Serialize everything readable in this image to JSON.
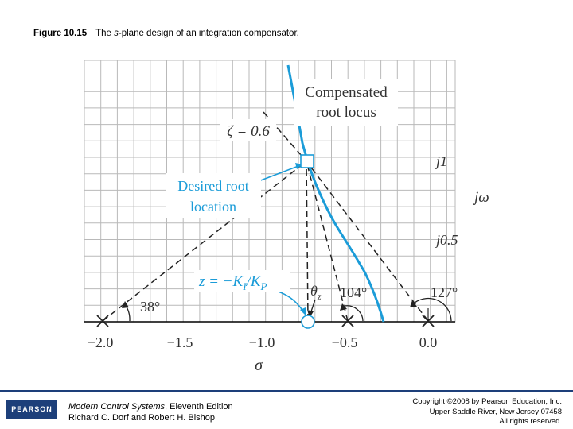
{
  "caption": {
    "figure_number": "Figure 10.15",
    "text_before": "The ",
    "text_italic": "s",
    "text_after": "-plane design of an integration compensator."
  },
  "diagram": {
    "labels": {
      "compensated_line1": "Compensated",
      "compensated_line2": "root locus",
      "zeta": "ζ = 0.6",
      "desired_line1": "Desired root",
      "desired_line2": "location",
      "zero_eq": "z = −K",
      "zero_eq_sub1": "I",
      "zero_eq_slash": "/K",
      "zero_eq_sub2": "P",
      "theta": "θ",
      "theta_sub": "z",
      "angle_38": "38°",
      "angle_104": "104°",
      "angle_127": "127°",
      "j1": "j1",
      "jomega": "jω",
      "j05": "j0.5",
      "sigma": "σ"
    },
    "x_ticks": [
      "−2.0",
      "−1.5",
      "−1.0",
      "−0.5",
      "0.0"
    ],
    "colors": {
      "locus": "#1b9cd8",
      "grid": "#b9b9b9",
      "dashed": "#222222"
    }
  },
  "footer": {
    "logo": "PEARSON",
    "book_title": "Modern Control Systems",
    "book_edition": ", Eleventh Edition",
    "authors": "Richard C. Dorf and Robert H. Bishop",
    "copyright_line1": "Copyright ©2008 by Pearson Education, Inc.",
    "copyright_line2": "Upper Saddle River, New Jersey 07458",
    "copyright_line3": "All rights reserved."
  }
}
